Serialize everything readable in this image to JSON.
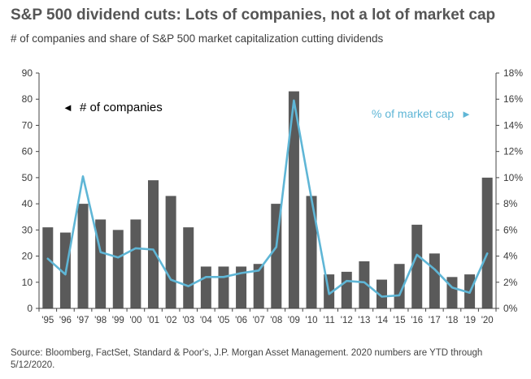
{
  "title": "S&P 500 dividend cuts: Lots of companies, not a lot of market cap",
  "subtitle": "# of companies and share of S&P 500 market capitalization cutting dividends",
  "source": "Source: Bloomberg, FactSet, Standard & Poor's, J.P. Morgan Asset Management. 2020 numbers are YTD through 5/12/2020.",
  "colors": {
    "bars": "#5a5a5a",
    "line": "#5fb6d6",
    "axis": "#444444",
    "text": "#3a3a3a"
  },
  "chart_data": {
    "type": "bar",
    "categories": [
      "'95",
      "'96",
      "'97",
      "'98",
      "'99",
      "'00",
      "'01",
      "'02",
      "'03",
      "'04",
      "'05",
      "'06",
      "'07",
      "'08",
      "'09",
      "'10",
      "'11",
      "'12",
      "'13",
      "'14",
      "'15",
      "'16",
      "'17",
      "'18",
      "'19",
      "'20"
    ],
    "series": [
      {
        "name": "# of companies",
        "axis": "left",
        "type": "bar",
        "values": [
          31,
          29,
          40,
          34,
          30,
          34,
          49,
          43,
          31,
          16,
          16,
          16,
          17,
          40,
          83,
          43,
          13,
          14,
          18,
          11,
          17,
          32,
          21,
          12,
          13,
          50
        ]
      },
      {
        "name": "% of market cap",
        "axis": "right",
        "type": "line",
        "values": [
          3.8,
          2.6,
          10.1,
          4.3,
          3.9,
          4.6,
          4.5,
          2.2,
          1.7,
          2.4,
          2.4,
          2.7,
          2.9,
          4.7,
          15.9,
          8.4,
          1.1,
          2.1,
          2.0,
          0.9,
          1.0,
          4.1,
          3.0,
          1.6,
          1.2,
          4.2
        ]
      }
    ],
    "left_axis": {
      "ylim": [
        0,
        90
      ],
      "ticks": [
        "0",
        "10",
        "20",
        "30",
        "40",
        "50",
        "60",
        "70",
        "80",
        "90"
      ]
    },
    "right_axis": {
      "ylim": [
        0,
        18
      ],
      "ticks": [
        "0%",
        "2%",
        "4%",
        "6%",
        "8%",
        "10%",
        "12%",
        "14%",
        "16%",
        "18%"
      ]
    },
    "legend": {
      "companies_label": "# of companies",
      "companies_arrow": "◄",
      "market_cap_label": "% of market cap",
      "market_cap_arrow": "►"
    },
    "grid": false
  }
}
